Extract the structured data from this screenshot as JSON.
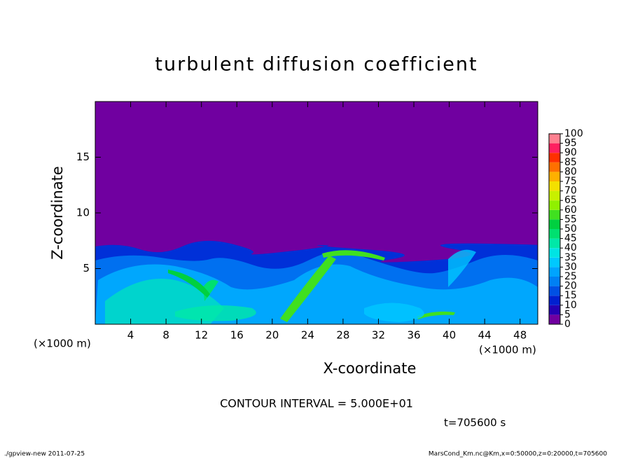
{
  "chart_data": {
    "type": "contour",
    "title": "turbulent diffusion coefficient",
    "xlabel": "X-coordinate",
    "ylabel": "Z-coordinate",
    "xlim": [
      0,
      50
    ],
    "ylim": [
      0,
      20
    ],
    "xticks": [
      4,
      8,
      12,
      16,
      20,
      24,
      28,
      32,
      36,
      40,
      44,
      48
    ],
    "yticks": [
      5,
      10,
      15
    ],
    "x_unit_label": "(×1000 m)",
    "y_unit_label": "(×1000 m)",
    "colorbar": {
      "levels": [
        0,
        5,
        10,
        15,
        20,
        25,
        30,
        35,
        40,
        45,
        50,
        55,
        60,
        65,
        70,
        75,
        80,
        85,
        90,
        95,
        100
      ],
      "colors": [
        "#7000a0",
        "#2400b4",
        "#0020d0",
        "#0050e4",
        "#0080f4",
        "#00a4ff",
        "#00c8ff",
        "#00e4e4",
        "#00e8a8",
        "#00e070",
        "#00d040",
        "#40e020",
        "#90f000",
        "#c8f000",
        "#f4e000",
        "#ffb000",
        "#ff7000",
        "#ff3000",
        "#ff2060",
        "#ff8090"
      ]
    },
    "contour_interval": "CONTOUR INTERVAL = 5.000E+01",
    "time_label": "t=705600 s",
    "footer_left": "./gpview-new  2011-07-25",
    "footer_right": "MarsCond_Km.nc@Km,x=0:50000,z=0:20000,t=705600"
  }
}
